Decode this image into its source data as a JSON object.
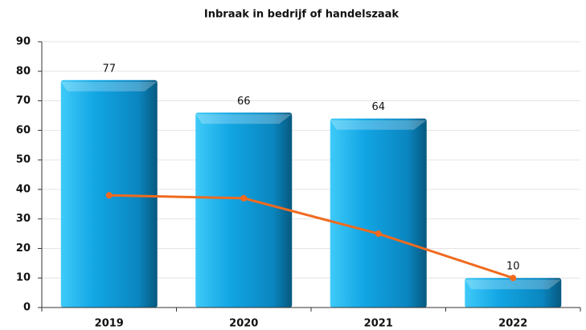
{
  "chart_data": {
    "type": "bar",
    "title": "Inbraak in bedrijf of handelszaak",
    "categories": [
      "2019",
      "2020",
      "2021",
      "2022"
    ],
    "series": [
      {
        "type": "bar",
        "color": "#12a6e4",
        "values": [
          77,
          66,
          64,
          10
        ]
      },
      {
        "type": "line",
        "color": "#f06a1e",
        "values": [
          38,
          37,
          25,
          10
        ]
      }
    ],
    "ylim": [
      0,
      90
    ],
    "yticks": [
      0,
      10,
      20,
      30,
      40,
      50,
      60,
      70,
      80,
      90
    ],
    "grid": true
  }
}
